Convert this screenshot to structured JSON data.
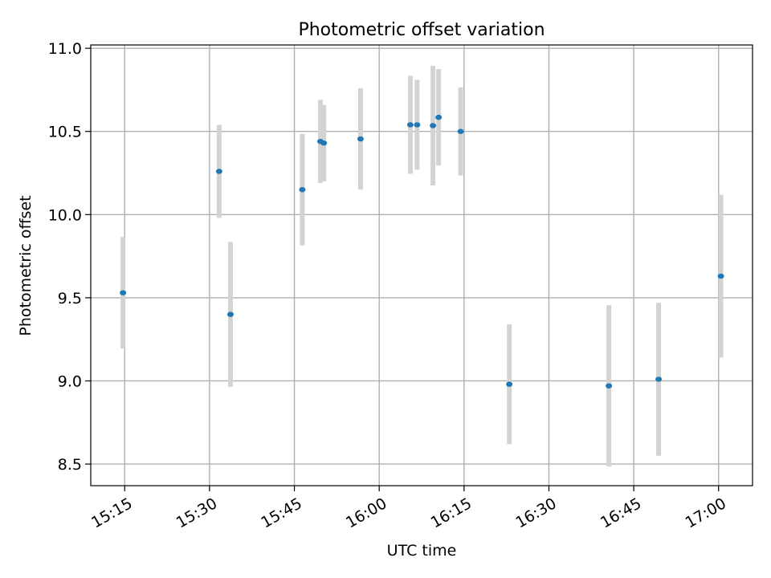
{
  "chart_data": {
    "type": "scatter",
    "title": "Photometric offset variation",
    "xlabel": "UTC time",
    "ylabel": "Photometric offset",
    "x_tick_labels": [
      "15:15",
      "15:30",
      "15:45",
      "16:00",
      "16:15",
      "16:30",
      "16:45",
      "17:00"
    ],
    "y_tick_labels": [
      "8.5",
      "9.0",
      "9.5",
      "10.0",
      "10.5",
      "11.0"
    ],
    "xlim": [
      "15:09",
      "17:06"
    ],
    "ylim": [
      8.37,
      11.02
    ],
    "grid": true,
    "point_color": "#1f77b4",
    "errorbar_color": "#d3d3d3",
    "points": [
      {
        "x": "15:14.7",
        "y": 9.53,
        "yerr": 0.335
      },
      {
        "x": "15:31.7",
        "y": 10.26,
        "yerr": 0.28
      },
      {
        "x": "15:33.7",
        "y": 9.4,
        "yerr": 0.435
      },
      {
        "x": "15:46.4",
        "y": 10.15,
        "yerr": 0.335
      },
      {
        "x": "15:49.6",
        "y": 10.44,
        "yerr": 0.25
      },
      {
        "x": "15:50.2",
        "y": 10.43,
        "yerr": 0.23
      },
      {
        "x": "15:56.7",
        "y": 10.455,
        "yerr": 0.305
      },
      {
        "x": "16:05.5",
        "y": 10.54,
        "yerr": 0.295
      },
      {
        "x": "16:06.7",
        "y": 10.54,
        "yerr": 0.27
      },
      {
        "x": "16:09.5",
        "y": 10.535,
        "yerr": 0.36
      },
      {
        "x": "16:10.5",
        "y": 10.585,
        "yerr": 0.29
      },
      {
        "x": "16:14.4",
        "y": 10.5,
        "yerr": 0.265
      },
      {
        "x": "16:23.0",
        "y": 8.98,
        "yerr": 0.36
      },
      {
        "x": "16:40.6",
        "y": 8.97,
        "yerr": 0.485
      },
      {
        "x": "16:49.4",
        "y": 9.01,
        "yerr": 0.46
      },
      {
        "x": "17:00.4",
        "y": 9.63,
        "yerr": 0.49
      }
    ]
  }
}
